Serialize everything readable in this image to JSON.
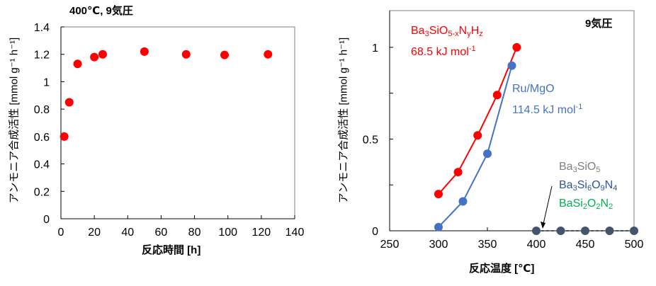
{
  "chart_data": [
    {
      "type": "scatter",
      "title": "400℃, 9気圧",
      "xlabel": "反応時間 [h]",
      "ylabel": "アンモニア合成活性 [mmol g⁻¹ h⁻¹]",
      "xlim": [
        0,
        140
      ],
      "ylim": [
        0,
        1.4
      ],
      "xticks": [
        0,
        20,
        40,
        60,
        80,
        100,
        120,
        140
      ],
      "yticks": [
        0,
        0.2,
        0.4,
        0.6,
        0.8,
        1,
        1.2,
        1.4
      ],
      "ytick_labels": [
        "0",
        "0.2",
        "0.4",
        "0.6",
        "0.8",
        "1",
        "1.2",
        "1.4"
      ],
      "grid": false,
      "series": [
        {
          "name": "Ba3SiO5-xNyHz",
          "color": "#ff0000",
          "x": [
            2,
            5,
            10,
            20,
            25,
            50,
            75,
            98,
            124
          ],
          "y": [
            0.6,
            0.85,
            1.13,
            1.18,
            1.2,
            1.22,
            1.2,
            1.195,
            1.2
          ]
        }
      ]
    },
    {
      "type": "line",
      "title": "9気圧",
      "xlabel": "反応温度 [℃]",
      "ylabel": "アンモニア合成活性 [mmol g⁻¹ h⁻¹]",
      "xlim": [
        250,
        500
      ],
      "ylim": [
        0,
        1.2
      ],
      "xticks": [
        250,
        300,
        350,
        400,
        450,
        500
      ],
      "yticks": [
        0,
        0.25,
        0.5,
        0.75,
        1
      ],
      "ytick_labels": [
        "0",
        "",
        "0.5",
        "",
        "1"
      ],
      "grid": false,
      "series": [
        {
          "name": "Ba3SiO5-xNyHz",
          "color": "#ff0000",
          "dashed": false,
          "x": [
            300,
            320,
            340,
            360,
            380
          ],
          "y": [
            0.2,
            0.32,
            0.52,
            0.74,
            1.0
          ]
        },
        {
          "name": "Ru/MgO",
          "color": "#4472c4",
          "dashed": false,
          "x": [
            300,
            325,
            350,
            375
          ],
          "y": [
            0.02,
            0.16,
            0.42,
            0.9
          ]
        },
        {
          "name": "Ba3SiO5 / Ba3Si6O9N4 / BaSi2O2N2",
          "color": "#44546a",
          "dashed": true,
          "x": [
            400,
            425,
            450,
            475,
            500
          ],
          "y": [
            0,
            0,
            0,
            0,
            0
          ]
        }
      ],
      "annotations": [
        {
          "id": "red-catalyst-label",
          "color": "#ff0000",
          "parts": [
            [
              "Ba"
            ],
            [
              "3",
              "sub"
            ],
            [
              "SiO"
            ],
            [
              "5-x",
              "sub"
            ],
            [
              "N"
            ],
            [
              "y",
              "sub"
            ],
            [
              "H"
            ],
            [
              "z",
              "sub"
            ]
          ]
        },
        {
          "id": "red-activation-energy",
          "color": "#ff0000",
          "parts": [
            [
              "68.5 kJ mol"
            ],
            [
              "-1",
              "sup"
            ]
          ]
        },
        {
          "id": "blue-catalyst-label",
          "color": "#4472c4",
          "parts": [
            [
              "Ru/MgO"
            ]
          ]
        },
        {
          "id": "blue-activation-energy",
          "color": "#4472c4",
          "parts": [
            [
              "114.5 kJ mol"
            ],
            [
              "-1",
              "sup"
            ]
          ]
        },
        {
          "id": "gray-catalyst-label",
          "color": "#7f7f7f",
          "parts": [
            [
              "Ba"
            ],
            [
              "3",
              "sub"
            ],
            [
              "SiO"
            ],
            [
              "5",
              "sub"
            ]
          ]
        },
        {
          "id": "navy-catalyst-label",
          "color": "#2f5597",
          "parts": [
            [
              "Ba"
            ],
            [
              "3",
              "sub"
            ],
            [
              "Si"
            ],
            [
              "6",
              "sub"
            ],
            [
              "O"
            ],
            [
              "9",
              "sub"
            ],
            [
              "N"
            ],
            [
              "4",
              "sub"
            ]
          ]
        },
        {
          "id": "green-catalyst-label",
          "color": "#00b050",
          "parts": [
            [
              "BaSi"
            ],
            [
              "2",
              "sub"
            ],
            [
              "O"
            ],
            [
              "2",
              "sub"
            ],
            [
              "N"
            ],
            [
              "2",
              "sub"
            ]
          ]
        }
      ]
    }
  ]
}
